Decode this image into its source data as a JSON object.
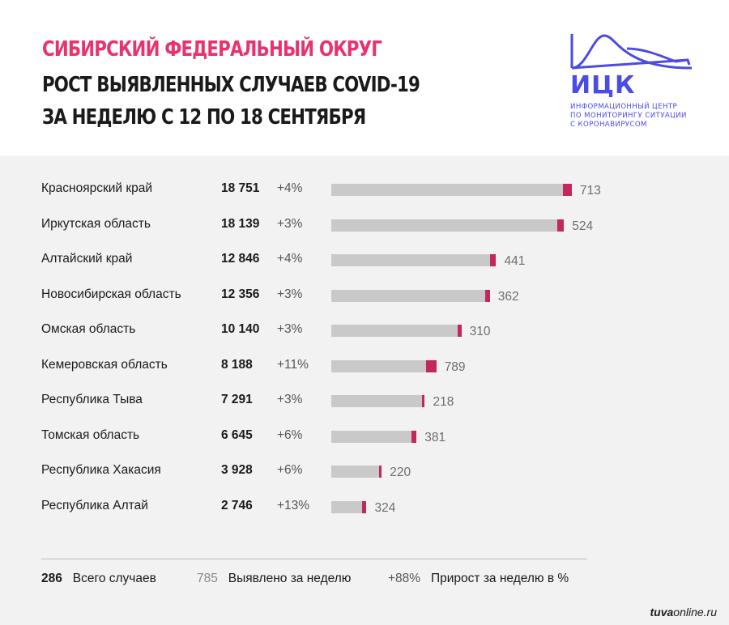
{
  "title": {
    "line1": "СИБИРСКИЙ ФЕДЕРАЛЬНЫЙ ОКРУГ",
    "line2": "РОСТ ВЫЯВЛЕННЫХ СЛУЧАЕВ COVID-19",
    "line3": "ЗА НЕДЕЛЮ С 12 ПО 18 СЕНТЯБРЯ"
  },
  "logo": {
    "name": "ИЦК",
    "subtitle": [
      "ИНФОРМАЦИОННЫЙ ЦЕНТР",
      "ПО МОНИТОРИНГУ СИТУАЦИИ",
      "С КОРОНАВИРУСОМ"
    ]
  },
  "colors": {
    "accent_pink": "#e8336d",
    "bar_new": "#c2285f",
    "bar_total": "#c9c9c9",
    "logo_blue": "#4b4be6",
    "panel_bg": "#f2f2f2"
  },
  "chart_data": {
    "type": "bar",
    "orientation": "horizontal",
    "stacked": true,
    "categories": [
      "Красноярский край",
      "Иркутская область",
      "Алтайский край",
      "Новосибирская область",
      "Омская область",
      "Кемеровская область",
      "Республика Тыва",
      "Томская область",
      "Республика Хакасия",
      "Республика Алтай"
    ],
    "totals": [
      18751,
      18139,
      12846,
      12356,
      10140,
      8188,
      7291,
      6645,
      3928,
      2746
    ],
    "totals_text": [
      "18 751",
      "18 139",
      "12 846",
      "12 356",
      "10 140",
      "8 188",
      "7 291",
      "6 645",
      "3 928",
      "2 746"
    ],
    "growth_text": [
      "+4%",
      "+3%",
      "+4%",
      "+3%",
      "+3%",
      "+11%",
      "+3%",
      "+6%",
      "+6%",
      "+13%"
    ],
    "weekly_new": [
      713,
      524,
      441,
      362,
      310,
      789,
      218,
      381,
      220,
      324
    ],
    "xlim": [
      0,
      18751
    ],
    "grid": false
  },
  "legend": {
    "total_number": "286",
    "total_label": "Всего случаев",
    "weekly_number": "785",
    "weekly_label": "Выявлено за неделю",
    "growth_number": "+88%",
    "growth_label": "Прирост за неделю в %"
  },
  "source": {
    "bold": "tuva",
    "rest": "online.ru"
  }
}
